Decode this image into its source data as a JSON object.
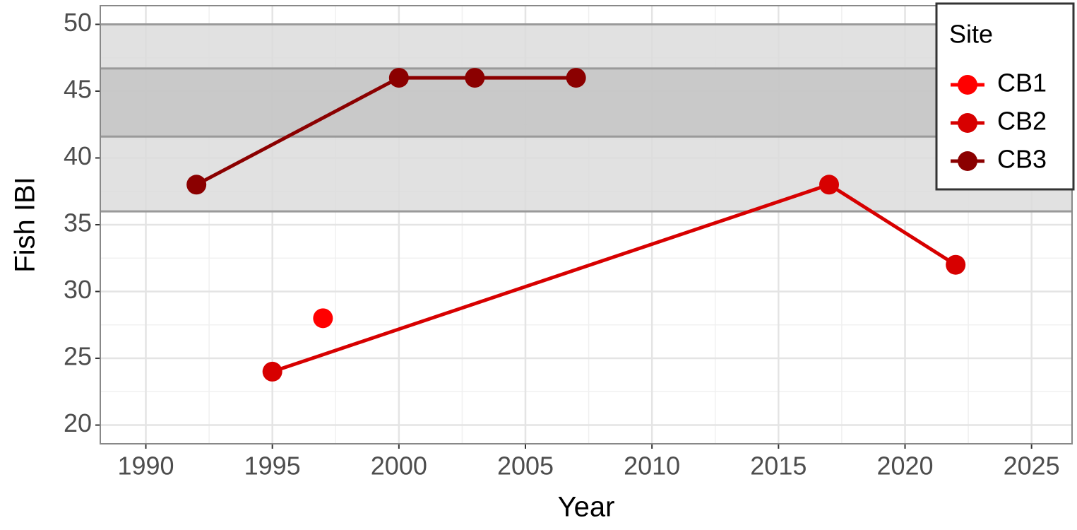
{
  "chart_data": {
    "type": "line",
    "xlabel": "Year",
    "ylabel": "Fish IBI",
    "xlim": [
      1988.2,
      2026.6
    ],
    "ylim": [
      18.6,
      51.4
    ],
    "xticks": [
      1990,
      1995,
      2000,
      2005,
      2010,
      2015,
      2020,
      2025
    ],
    "yticks": [
      20,
      25,
      30,
      35,
      40,
      45,
      50
    ],
    "grid": true,
    "bands": [
      {
        "ymin": 36,
        "ymax": 50,
        "color": "#dcdcdc"
      },
      {
        "ymin": 41.6,
        "ymax": 46.7,
        "color": "#bfbfbf"
      }
    ],
    "legend_title": "Site",
    "legend": "top-right",
    "series": [
      {
        "name": "CB1",
        "color": "#ff0000",
        "x": [
          1997
        ],
        "values": [
          28
        ]
      },
      {
        "name": "CB2",
        "color": "#d70000",
        "x": [
          1995,
          2017,
          2022
        ],
        "values": [
          24,
          38,
          32
        ]
      },
      {
        "name": "CB3",
        "color": "#8b0000",
        "x": [
          1992,
          2000,
          2003,
          2007
        ],
        "values": [
          38,
          46,
          46,
          46
        ]
      }
    ]
  }
}
